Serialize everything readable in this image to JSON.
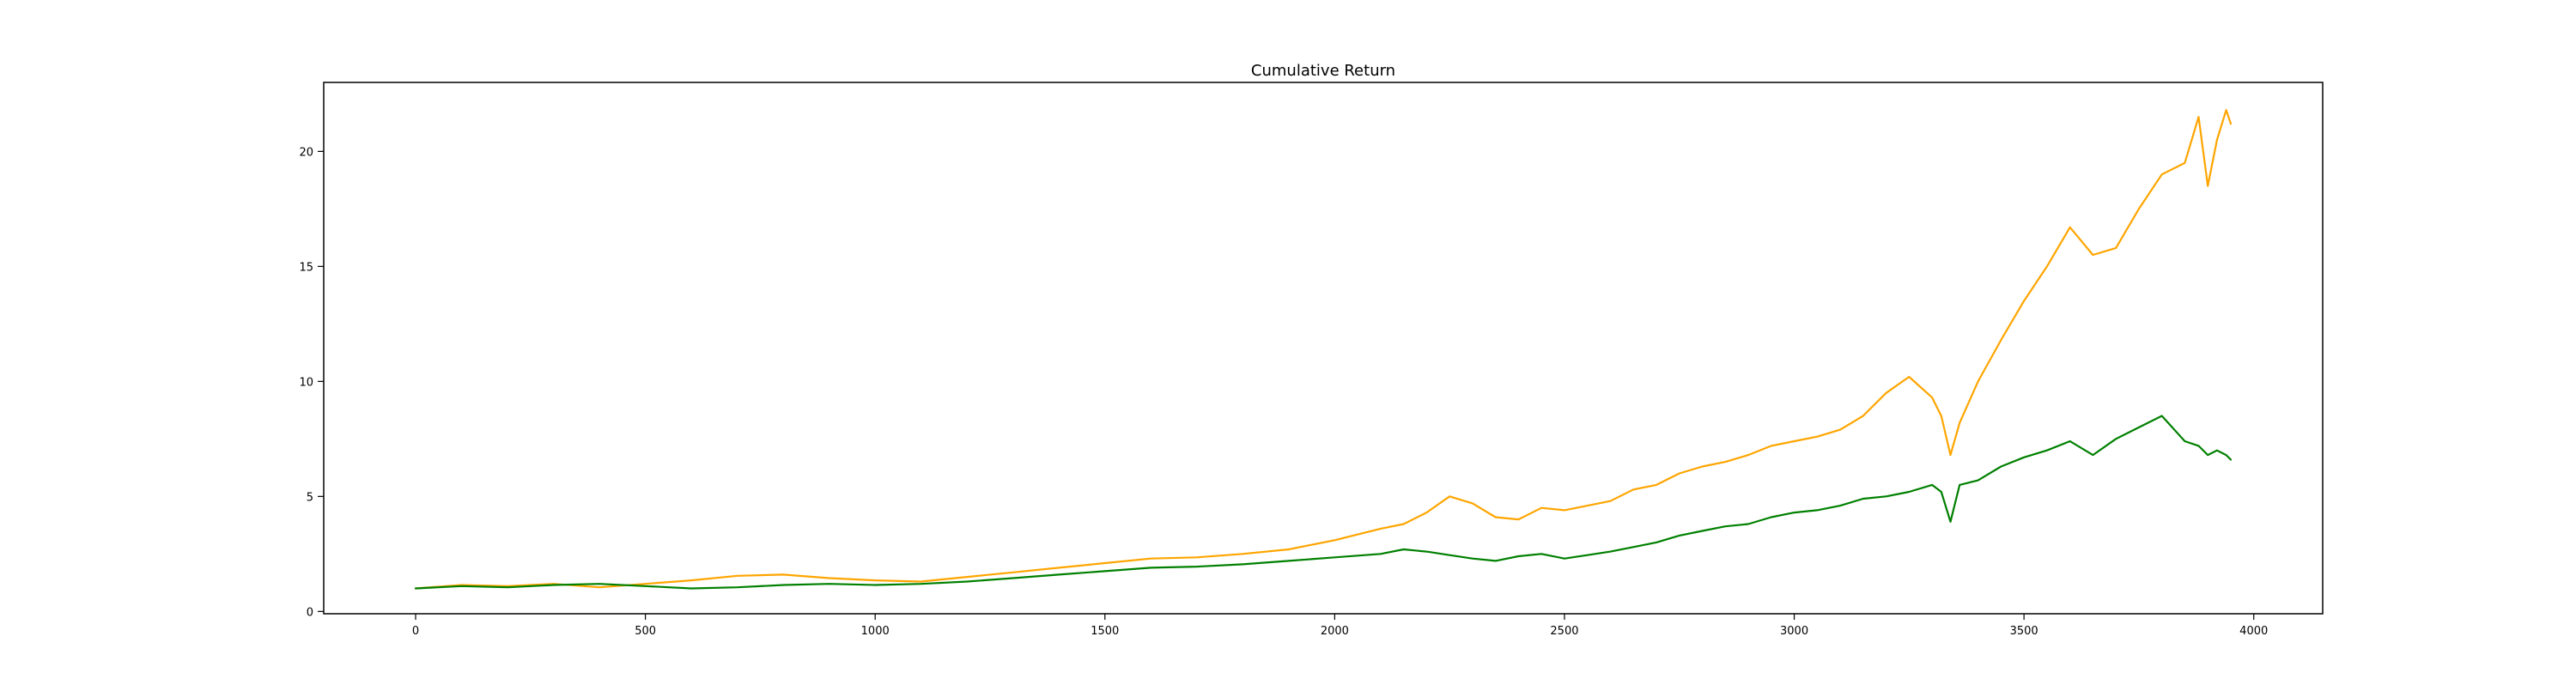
{
  "chart_data": {
    "type": "line",
    "title": "Cumulative Return",
    "xlabel": "",
    "ylabel": "",
    "xlim": [
      -200,
      4150
    ],
    "ylim": [
      -0.1,
      23.0
    ],
    "x_ticks": [
      0,
      500,
      1000,
      1500,
      2000,
      2500,
      3000,
      3500,
      4000
    ],
    "y_ticks": [
      0,
      5,
      10,
      15,
      20
    ],
    "grid": false,
    "legend": "none",
    "series": [
      {
        "color": "#ffa500",
        "x": [
          0,
          100,
          200,
          300,
          400,
          500,
          600,
          700,
          800,
          900,
          1000,
          1100,
          1200,
          1300,
          1400,
          1500,
          1600,
          1700,
          1800,
          1900,
          2000,
          2100,
          2150,
          2200,
          2250,
          2300,
          2350,
          2400,
          2450,
          2500,
          2550,
          2600,
          2650,
          2700,
          2750,
          2800,
          2850,
          2900,
          2950,
          3000,
          3050,
          3100,
          3150,
          3200,
          3250,
          3300,
          3320,
          3340,
          3360,
          3400,
          3450,
          3500,
          3550,
          3600,
          3650,
          3700,
          3750,
          3800,
          3850,
          3880,
          3900,
          3920,
          3940,
          3950
        ],
        "y": [
          1.0,
          1.15,
          1.1,
          1.2,
          1.05,
          1.2,
          1.35,
          1.55,
          1.6,
          1.45,
          1.35,
          1.3,
          1.5,
          1.7,
          1.9,
          2.1,
          2.3,
          2.35,
          2.5,
          2.7,
          3.1,
          3.6,
          3.8,
          4.3,
          5.0,
          4.7,
          4.1,
          4.0,
          4.5,
          4.4,
          4.6,
          4.8,
          5.3,
          5.5,
          6.0,
          6.3,
          6.5,
          6.8,
          7.2,
          7.4,
          7.6,
          7.9,
          8.5,
          9.5,
          10.2,
          9.3,
          8.5,
          6.8,
          8.2,
          10.0,
          11.8,
          13.5,
          15.0,
          16.7,
          15.5,
          15.8,
          17.5,
          19.0,
          19.5,
          21.5,
          18.5,
          20.5,
          21.8,
          21.2
        ]
      },
      {
        "color": "#008000",
        "x": [
          0,
          100,
          200,
          300,
          400,
          500,
          600,
          700,
          800,
          900,
          1000,
          1100,
          1200,
          1300,
          1400,
          1500,
          1600,
          1700,
          1800,
          1900,
          2000,
          2100,
          2150,
          2200,
          2250,
          2300,
          2350,
          2400,
          2450,
          2500,
          2550,
          2600,
          2650,
          2700,
          2750,
          2800,
          2850,
          2900,
          2950,
          3000,
          3050,
          3100,
          3150,
          3200,
          3250,
          3300,
          3320,
          3340,
          3360,
          3400,
          3450,
          3500,
          3550,
          3600,
          3650,
          3700,
          3750,
          3800,
          3850,
          3880,
          3900,
          3920,
          3940,
          3950
        ],
        "y": [
          1.0,
          1.1,
          1.05,
          1.15,
          1.2,
          1.1,
          1.0,
          1.05,
          1.15,
          1.2,
          1.15,
          1.2,
          1.3,
          1.45,
          1.6,
          1.75,
          1.9,
          1.95,
          2.05,
          2.2,
          2.35,
          2.5,
          2.7,
          2.6,
          2.45,
          2.3,
          2.2,
          2.4,
          2.5,
          2.3,
          2.45,
          2.6,
          2.8,
          3.0,
          3.3,
          3.5,
          3.7,
          3.8,
          4.1,
          4.3,
          4.4,
          4.6,
          4.9,
          5.0,
          5.2,
          5.5,
          5.2,
          3.9,
          5.5,
          5.7,
          6.3,
          6.7,
          7.0,
          7.4,
          6.8,
          7.5,
          8.0,
          8.5,
          7.4,
          7.2,
          6.8,
          7.0,
          6.8,
          6.6
        ]
      }
    ]
  }
}
